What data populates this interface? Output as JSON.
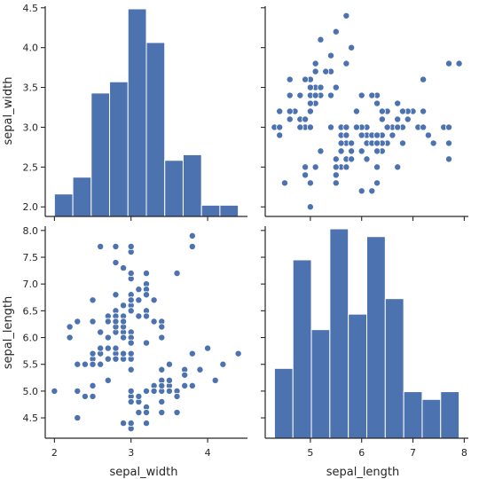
{
  "chart_data": {
    "type": "pairplot",
    "variables": [
      "sepal_width",
      "sepal_length"
    ],
    "colors": {
      "marker": "#4c72b0",
      "edge": "#ffffff"
    },
    "xlabels": [
      "sepal_width",
      "sepal_length"
    ],
    "ylabels": [
      "sepal_width",
      "sepal_length"
    ],
    "ranges": {
      "sepal_width": {
        "lim": [
          1.88,
          4.52
        ],
        "ticks": [
          2,
          3,
          4
        ],
        "diag_ticks": [
          2.0,
          2.5,
          3.0,
          3.5,
          4.0,
          4.5
        ]
      },
      "sepal_length": {
        "lim": [
          4.12,
          8.08
        ],
        "ticks": [
          5,
          6,
          7,
          8
        ],
        "diag_ticks": [
          4.5,
          5.0,
          5.5,
          6.0,
          6.5,
          7.0,
          7.5,
          8.0
        ]
      }
    },
    "histograms": [
      {
        "variable": "sepal_width",
        "bin_edges": [
          2.0,
          2.24,
          2.48,
          2.72,
          2.96,
          3.2,
          3.44,
          3.68,
          3.92,
          4.16,
          4.4
        ],
        "counts": [
          4,
          7,
          22,
          24,
          37,
          31,
          10,
          11,
          2,
          2
        ]
      },
      {
        "variable": "sepal_length",
        "bin_edges": [
          4.3,
          4.66,
          5.02,
          5.38,
          5.74,
          6.1,
          6.46,
          6.82,
          7.18,
          7.54,
          7.9
        ],
        "counts": [
          9,
          23,
          14,
          27,
          16,
          26,
          18,
          6,
          5,
          6
        ]
      }
    ],
    "points": [
      [
        3.5,
        5.1
      ],
      [
        3.0,
        4.9
      ],
      [
        3.2,
        4.7
      ],
      [
        3.1,
        4.6
      ],
      [
        3.6,
        5.0
      ],
      [
        3.9,
        5.4
      ],
      [
        3.4,
        4.6
      ],
      [
        3.4,
        5.0
      ],
      [
        2.9,
        4.4
      ],
      [
        3.1,
        4.9
      ],
      [
        3.7,
        5.4
      ],
      [
        3.4,
        4.8
      ],
      [
        3.0,
        4.8
      ],
      [
        3.0,
        4.3
      ],
      [
        4.0,
        5.8
      ],
      [
        4.4,
        5.7
      ],
      [
        3.9,
        5.4
      ],
      [
        3.5,
        5.1
      ],
      [
        3.8,
        5.7
      ],
      [
        3.8,
        5.1
      ],
      [
        3.4,
        5.4
      ],
      [
        3.7,
        5.1
      ],
      [
        3.6,
        4.6
      ],
      [
        3.3,
        5.1
      ],
      [
        3.4,
        4.8
      ],
      [
        3.0,
        5.0
      ],
      [
        3.4,
        5.0
      ],
      [
        3.5,
        5.2
      ],
      [
        3.4,
        5.2
      ],
      [
        3.2,
        4.7
      ],
      [
        3.1,
        4.8
      ],
      [
        3.4,
        5.4
      ],
      [
        4.1,
        5.2
      ],
      [
        4.2,
        5.5
      ],
      [
        3.1,
        4.9
      ],
      [
        3.2,
        5.0
      ],
      [
        3.5,
        5.5
      ],
      [
        3.6,
        4.9
      ],
      [
        3.0,
        4.4
      ],
      [
        3.4,
        5.1
      ],
      [
        3.5,
        5.0
      ],
      [
        2.3,
        4.5
      ],
      [
        3.2,
        4.4
      ],
      [
        3.5,
        5.0
      ],
      [
        3.8,
        5.1
      ],
      [
        3.0,
        4.8
      ],
      [
        3.8,
        5.1
      ],
      [
        3.2,
        4.6
      ],
      [
        3.7,
        5.3
      ],
      [
        3.3,
        5.0
      ],
      [
        3.2,
        7.0
      ],
      [
        3.2,
        6.4
      ],
      [
        3.1,
        6.9
      ],
      [
        2.3,
        5.5
      ],
      [
        2.8,
        6.5
      ],
      [
        2.8,
        5.7
      ],
      [
        3.3,
        6.3
      ],
      [
        2.4,
        4.9
      ],
      [
        2.9,
        6.6
      ],
      [
        2.7,
        5.2
      ],
      [
        2.0,
        5.0
      ],
      [
        3.0,
        5.9
      ],
      [
        2.2,
        6.0
      ],
      [
        2.9,
        6.1
      ],
      [
        2.9,
        5.6
      ],
      [
        3.1,
        6.7
      ],
      [
        3.0,
        5.6
      ],
      [
        2.7,
        5.8
      ],
      [
        2.2,
        6.2
      ],
      [
        2.5,
        5.6
      ],
      [
        3.2,
        5.9
      ],
      [
        2.8,
        6.1
      ],
      [
        2.5,
        6.3
      ],
      [
        2.8,
        6.1
      ],
      [
        2.9,
        6.4
      ],
      [
        3.0,
        6.6
      ],
      [
        2.8,
        6.8
      ],
      [
        3.0,
        6.7
      ],
      [
        2.9,
        6.0
      ],
      [
        2.6,
        5.7
      ],
      [
        2.4,
        5.5
      ],
      [
        2.4,
        5.5
      ],
      [
        2.7,
        5.8
      ],
      [
        2.7,
        6.0
      ],
      [
        3.0,
        5.4
      ],
      [
        3.4,
        6.0
      ],
      [
        3.1,
        6.7
      ],
      [
        2.3,
        6.3
      ],
      [
        3.0,
        5.6
      ],
      [
        2.5,
        5.5
      ],
      [
        2.6,
        5.5
      ],
      [
        3.0,
        6.1
      ],
      [
        2.6,
        5.8
      ],
      [
        2.3,
        5.0
      ],
      [
        2.7,
        5.6
      ],
      [
        3.0,
        5.7
      ],
      [
        2.9,
        5.7
      ],
      [
        2.9,
        6.2
      ],
      [
        2.5,
        5.1
      ],
      [
        2.8,
        5.7
      ],
      [
        3.3,
        6.3
      ],
      [
        2.7,
        5.8
      ],
      [
        3.0,
        7.1
      ],
      [
        2.9,
        6.3
      ],
      [
        3.0,
        6.5
      ],
      [
        3.0,
        7.6
      ],
      [
        2.5,
        4.9
      ],
      [
        2.9,
        7.3
      ],
      [
        2.5,
        6.7
      ],
      [
        3.6,
        7.2
      ],
      [
        3.2,
        6.5
      ],
      [
        2.7,
        6.4
      ],
      [
        3.0,
        6.8
      ],
      [
        2.5,
        5.7
      ],
      [
        2.8,
        5.8
      ],
      [
        3.2,
        6.4
      ],
      [
        3.0,
        6.5
      ],
      [
        3.8,
        7.7
      ],
      [
        2.6,
        7.7
      ],
      [
        2.2,
        6.0
      ],
      [
        3.2,
        6.9
      ],
      [
        2.8,
        5.6
      ],
      [
        2.8,
        7.7
      ],
      [
        2.7,
        6.3
      ],
      [
        3.3,
        6.7
      ],
      [
        3.2,
        7.2
      ],
      [
        2.8,
        6.2
      ],
      [
        3.0,
        6.1
      ],
      [
        2.8,
        6.4
      ],
      [
        3.0,
        7.2
      ],
      [
        2.8,
        7.4
      ],
      [
        3.8,
        7.9
      ],
      [
        2.8,
        6.4
      ],
      [
        2.8,
        6.3
      ],
      [
        2.6,
        6.1
      ],
      [
        3.0,
        7.7
      ],
      [
        3.4,
        6.3
      ],
      [
        3.1,
        6.4
      ],
      [
        3.0,
        6.0
      ],
      [
        3.1,
        6.9
      ],
      [
        3.1,
        6.7
      ],
      [
        3.1,
        6.9
      ],
      [
        2.7,
        5.8
      ],
      [
        3.2,
        6.8
      ],
      [
        3.3,
        6.7
      ],
      [
        3.0,
        6.7
      ],
      [
        2.5,
        6.3
      ],
      [
        3.0,
        6.5
      ],
      [
        3.4,
        6.2
      ],
      [
        3.0,
        5.9
      ]
    ]
  }
}
